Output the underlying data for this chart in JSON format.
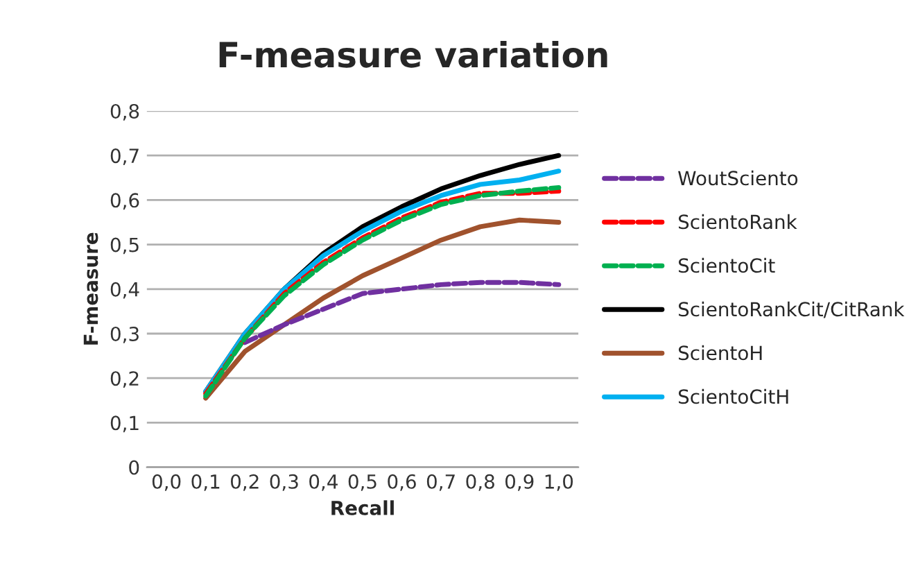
{
  "chart_data": {
    "type": "line",
    "title": "F-measure variation",
    "xlabel": "Recall",
    "ylabel": "F-measure",
    "categories": [
      "0,0",
      "0,1",
      "0,2",
      "0,3",
      "0,4",
      "0,5",
      "0,6",
      "0,7",
      "0,8",
      "0,9",
      "1,0"
    ],
    "ylim": [
      0,
      0.8
    ],
    "yticks": [
      0,
      {
        "value": 0.1,
        "label": "0,1"
      },
      {
        "value": 0.2,
        "label": "0,2"
      },
      {
        "value": 0.3,
        "label": "0,3"
      },
      {
        "value": 0.4,
        "label": "0,4"
      },
      {
        "value": 0.5,
        "label": "0,5"
      },
      {
        "value": 0.6,
        "label": "0,6"
      },
      {
        "value": 0.7,
        "label": "0,7"
      },
      {
        "value": 0.8,
        "label": "0,8"
      }
    ],
    "grid": "y",
    "legend": "right",
    "marker": "none",
    "series": [
      {
        "name": "WoutSciento",
        "color": "#7030a0",
        "line_style": "dashed",
        "values": [
          null,
          null,
          0.28,
          0.32,
          0.355,
          0.39,
          0.4,
          0.41,
          0.415,
          0.415,
          0.41
        ]
      },
      {
        "name": "ScientoRank",
        "color": "#ff0000",
        "line_style": "dashed",
        "values": [
          null,
          0.165,
          0.29,
          0.39,
          0.46,
          0.515,
          0.56,
          0.595,
          0.615,
          0.615,
          0.62
        ]
      },
      {
        "name": "ScientoCit",
        "color": "#00b050",
        "line_style": "dashed",
        "values": [
          null,
          0.16,
          0.29,
          0.385,
          0.455,
          0.51,
          0.555,
          0.59,
          0.61,
          0.62,
          0.628
        ]
      },
      {
        "name": "ScientoRankCit/CitRank",
        "color": "#000000",
        "line_style": "solid",
        "values": [
          null,
          0.17,
          0.3,
          0.4,
          0.48,
          0.54,
          0.585,
          0.625,
          0.655,
          0.68,
          0.7
        ]
      },
      {
        "name": "ScientoH",
        "color": "#a0522d",
        "line_style": "solid",
        "values": [
          null,
          0.155,
          0.26,
          0.32,
          0.38,
          0.43,
          0.47,
          0.51,
          0.54,
          0.555,
          0.55
        ]
      },
      {
        "name": "ScientoCitH",
        "color": "#00b0f0",
        "line_style": "solid",
        "values": [
          null,
          0.17,
          0.3,
          0.4,
          0.475,
          0.53,
          0.575,
          0.61,
          0.635,
          0.645,
          0.665
        ]
      }
    ]
  }
}
